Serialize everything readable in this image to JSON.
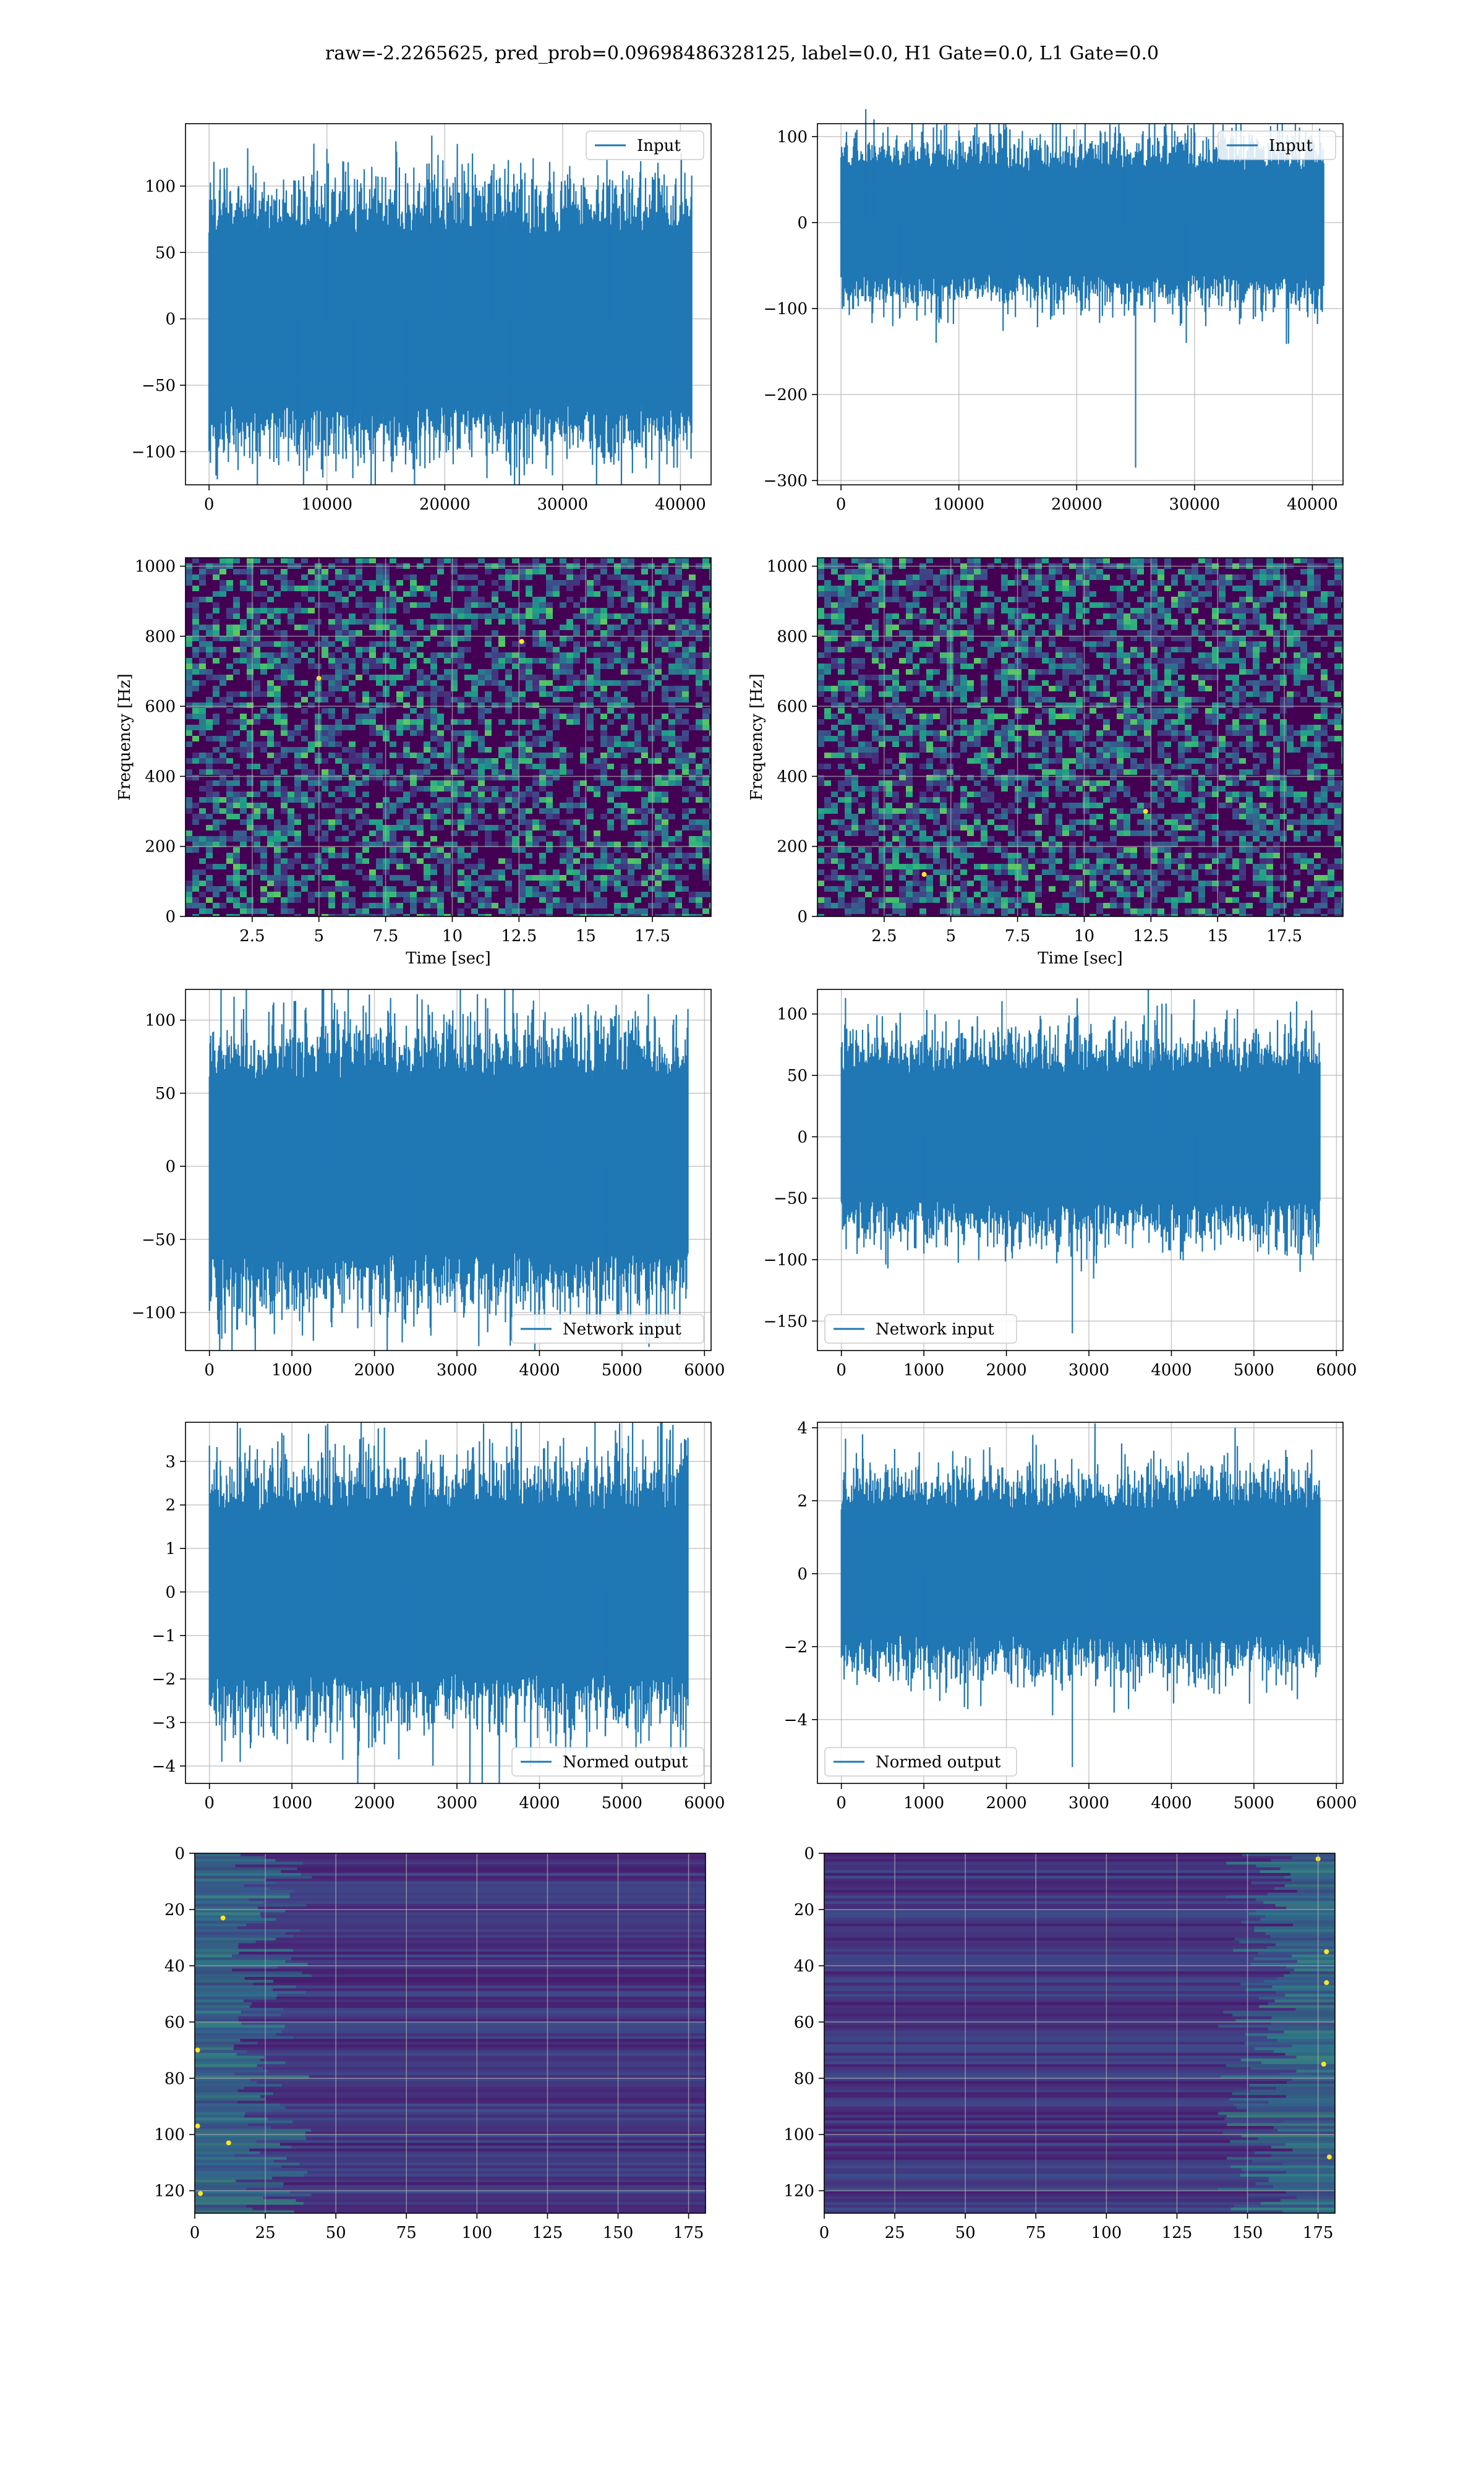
{
  "figure_title": "raw=-2.2265625, pred_prob=0.09698486328125, label=0.0, H1 Gate=0.0, L1 Gate=0.0",
  "colors": {
    "line": "#1f77b4",
    "grid": "#b0b0b0",
    "viridis_low": "#440154",
    "viridis_mid": "#21918c",
    "viridis_high": "#fde725"
  },
  "chart_data": [
    {
      "id": "h1-input",
      "type": "line",
      "title": "",
      "xlabel": "",
      "ylabel": "",
      "xlim": [
        -2000,
        42600
      ],
      "ylim": [
        -125,
        147
      ],
      "xticks": [
        0,
        10000,
        20000,
        30000,
        40000
      ],
      "yticks": [
        -100,
        -50,
        0,
        50,
        100
      ],
      "grid": true,
      "legend_position": "upper right",
      "series": [
        {
          "name": "Input",
          "x_range": [
            0,
            40960
          ],
          "amplitude": 75,
          "spikes": [
            [
              2500,
              100
            ],
            [
              10000,
              128
            ],
            [
              11800,
              118
            ],
            [
              18900,
              138
            ],
            [
              24000,
              112
            ],
            [
              26800,
              110
            ],
            [
              34000,
              105
            ],
            [
              7500,
              -102
            ],
            [
              16700,
              -100
            ],
            [
              34100,
              -108
            ],
            [
              12200,
              -120
            ],
            [
              25600,
              -118
            ]
          ]
        }
      ]
    },
    {
      "id": "l1-input",
      "type": "line",
      "title": "",
      "xlabel": "",
      "ylabel": "",
      "xlim": [
        -2000,
        42600
      ],
      "ylim": [
        -305,
        115
      ],
      "xticks": [
        0,
        10000,
        20000,
        30000,
        40000
      ],
      "yticks": [
        -300,
        -200,
        -100,
        0,
        100
      ],
      "grid": true,
      "legend_position": "upper right",
      "series": [
        {
          "name": "Input",
          "x_range": [
            0,
            40960
          ],
          "amplitude": 70,
          "spikes": [
            [
              2100,
              132
            ],
            [
              2800,
              120
            ],
            [
              13500,
              104
            ],
            [
              24000,
              100
            ],
            [
              25000,
              -285
            ],
            [
              29300,
              -140
            ],
            [
              28800,
              -120
            ],
            [
              5000,
              -110
            ],
            [
              14800,
              -110
            ]
          ]
        }
      ]
    },
    {
      "id": "h1-spectrogram",
      "type": "heatmap",
      "title": "",
      "xlabel": "Time [sec]",
      "ylabel": "Frequency [Hz]",
      "xlim": [
        0,
        19.7
      ],
      "ylim": [
        0,
        1024
      ],
      "xticks": [
        2.5,
        5.0,
        7.5,
        10.0,
        12.5,
        15.0,
        17.5
      ],
      "yticks": [
        0,
        200,
        400,
        600,
        800,
        1000
      ],
      "grid": true,
      "colormap": "viridis",
      "hotspots": [
        [
          12.6,
          785
        ],
        [
          5.0,
          680
        ]
      ]
    },
    {
      "id": "l1-spectrogram",
      "type": "heatmap",
      "title": "",
      "xlabel": "Time [sec]",
      "ylabel": "Frequency [Hz]",
      "xlim": [
        0,
        19.7
      ],
      "ylim": [
        0,
        1024
      ],
      "xticks": [
        2.5,
        5.0,
        7.5,
        10.0,
        12.5,
        15.0,
        17.5
      ],
      "yticks": [
        0,
        200,
        400,
        600,
        800,
        1000
      ],
      "grid": true,
      "colormap": "viridis",
      "hotspots": [
        [
          4.0,
          120
        ],
        [
          12.3,
          300
        ]
      ]
    },
    {
      "id": "h1-network-input",
      "type": "line",
      "title": "",
      "xlabel": "",
      "ylabel": "",
      "xlim": [
        -290,
        6080
      ],
      "ylim": [
        -126,
        121
      ],
      "xticks": [
        0,
        1000,
        2000,
        3000,
        4000,
        5000,
        6000
      ],
      "yticks": [
        -100,
        -50,
        0,
        50,
        100
      ],
      "grid": true,
      "legend_position": "lower right",
      "series": [
        {
          "name": "Network input",
          "x_range": [
            0,
            5800
          ],
          "amplitude": 70,
          "spikes": [
            [
              900,
              112
            ],
            [
              4050,
              100
            ],
            [
              1500,
              95
            ],
            [
              3600,
              90
            ],
            [
              150,
              -118
            ],
            [
              100,
              -105
            ],
            [
              2400,
              -95
            ],
            [
              4800,
              -92
            ]
          ]
        }
      ]
    },
    {
      "id": "l1-network-input",
      "type": "line",
      "title": "",
      "xlabel": "",
      "ylabel": "",
      "xlim": [
        -290,
        6080
      ],
      "ylim": [
        -174,
        120
      ],
      "xticks": [
        0,
        1000,
        2000,
        3000,
        4000,
        5000,
        6000
      ],
      "yticks": [
        -150,
        -100,
        -50,
        0,
        50,
        100
      ],
      "grid": true,
      "legend_position": "lower left",
      "series": [
        {
          "name": "Network input",
          "x_range": [
            0,
            5800
          ],
          "amplitude": 60,
          "spikes": [
            [
              50,
              113
            ],
            [
              4800,
              104
            ],
            [
              5700,
              103
            ],
            [
              3800,
              95
            ],
            [
              2800,
              -160
            ],
            [
              1000,
              -95
            ],
            [
              3100,
              -88
            ],
            [
              4300,
              -87
            ]
          ]
        }
      ]
    },
    {
      "id": "h1-normed-output",
      "type": "line",
      "title": "",
      "xlabel": "",
      "ylabel": "",
      "xlim": [
        -290,
        6080
      ],
      "ylim": [
        -4.4,
        3.9
      ],
      "xticks": [
        0,
        1000,
        2000,
        3000,
        4000,
        5000,
        6000
      ],
      "yticks": [
        -4,
        -3,
        -2,
        -1,
        0,
        1,
        2,
        3
      ],
      "grid": true,
      "legend_position": "lower right",
      "series": [
        {
          "name": "Normed output",
          "x_range": [
            0,
            5800
          ],
          "amplitude": 2.2,
          "spikes": [
            [
              900,
              3.6
            ],
            [
              4050,
              3.3
            ],
            [
              1500,
              3.1
            ],
            [
              150,
              -3.9
            ],
            [
              2400,
              -3.2
            ],
            [
              4800,
              -3.3
            ],
            [
              4100,
              -3.2
            ]
          ]
        }
      ]
    },
    {
      "id": "l1-normed-output",
      "type": "line",
      "title": "",
      "xlabel": "",
      "ylabel": "",
      "xlim": [
        -290,
        6080
      ],
      "ylim": [
        -5.75,
        4.15
      ],
      "xticks": [
        0,
        1000,
        2000,
        3000,
        4000,
        5000,
        6000
      ],
      "yticks": [
        -4,
        -2,
        0,
        2,
        4
      ],
      "grid": true,
      "legend_position": "lower left",
      "series": [
        {
          "name": "Normed output",
          "x_range": [
            0,
            5800
          ],
          "amplitude": 2.0,
          "spikes": [
            [
              50,
              3.7
            ],
            [
              4800,
              3.5
            ],
            [
              5700,
              3.4
            ],
            [
              2800,
              -5.3
            ],
            [
              1000,
              -3.2
            ],
            [
              3100,
              -2.9
            ]
          ]
        }
      ]
    },
    {
      "id": "h1-features",
      "type": "heatmap",
      "title": "",
      "xlabel": "",
      "ylabel": "",
      "xlim": [
        0,
        181
      ],
      "ylim": [
        128,
        0
      ],
      "xticks": [
        0,
        25,
        50,
        75,
        100,
        125,
        150,
        175
      ],
      "yticks": [
        0,
        20,
        40,
        60,
        80,
        100,
        120
      ],
      "grid": true,
      "colormap": "viridis",
      "bright_edge": "left",
      "hotspots": [
        [
          1,
          70
        ],
        [
          1,
          97
        ],
        [
          2,
          121
        ],
        [
          10,
          23
        ],
        [
          12,
          103
        ]
      ]
    },
    {
      "id": "l1-features",
      "type": "heatmap",
      "title": "",
      "xlabel": "",
      "ylabel": "",
      "xlim": [
        0,
        181
      ],
      "ylim": [
        128,
        0
      ],
      "xticks": [
        0,
        25,
        50,
        75,
        100,
        125,
        150,
        175
      ],
      "yticks": [
        0,
        20,
        40,
        60,
        80,
        100,
        120
      ],
      "grid": true,
      "colormap": "viridis",
      "bright_edge": "right",
      "hotspots": [
        [
          178,
          35
        ],
        [
          177,
          75
        ],
        [
          179,
          108
        ],
        [
          175,
          2
        ],
        [
          178,
          46
        ]
      ]
    }
  ]
}
